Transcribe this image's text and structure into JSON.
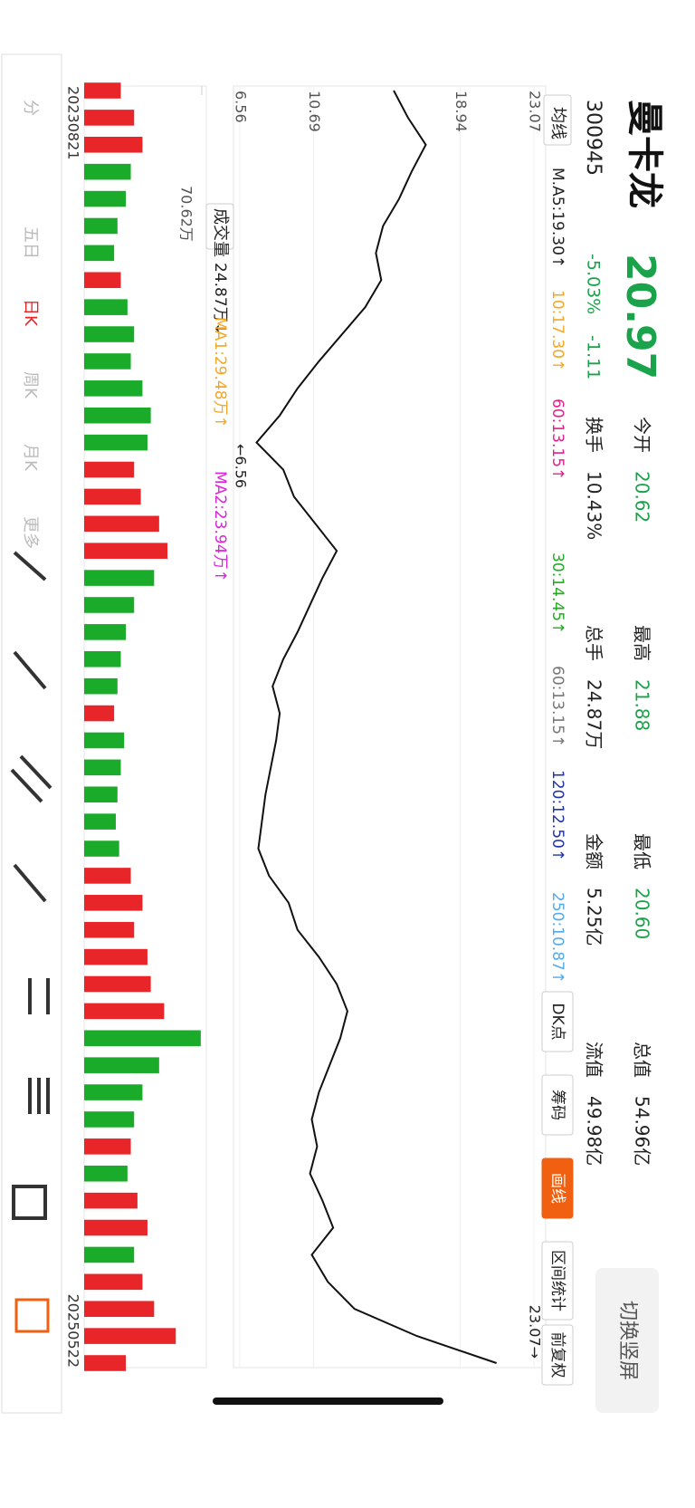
{
  "header": {
    "name": "曼卡龙",
    "code": "300945",
    "price": "20.97",
    "change_pct": "-5.03%",
    "change": "-1.11",
    "stats": [
      {
        "label": "今开",
        "value": "20.62",
        "color": "#1aa34a"
      },
      {
        "label": "换手",
        "value": "10.43%",
        "color": "#222222"
      },
      {
        "label": "最高",
        "value": "21.88",
        "color": "#1aa34a"
      },
      {
        "label": "总手",
        "value": "24.87万",
        "color": "#222222"
      },
      {
        "label": "最低",
        "value": "20.60",
        "color": "#1aa34a"
      },
      {
        "label": "金额",
        "value": "5.25亿",
        "color": "#222222"
      },
      {
        "label": "总值",
        "value": "54.96亿",
        "color": "#222222"
      },
      {
        "label": "流值",
        "value": "49.98亿",
        "color": "#222222"
      }
    ]
  },
  "switch_button": "切换竖屏",
  "ma_selector": "均线",
  "ma_items": [
    {
      "text": "M.A5:19.30↑",
      "color": "#222222"
    },
    {
      "text": "10:17.30↑",
      "color": "#f5a623"
    },
    {
      "text": "60:13.15↑",
      "color": "#e0218a"
    },
    {
      "text": "30:14.45↑",
      "color": "#22aa22"
    },
    {
      "text": "60:13.15↑",
      "color": "#777777"
    },
    {
      "text": "120:12.50↑",
      "color": "#2233aa"
    },
    {
      "text": "250:10.87↑",
      "color": "#55aaee"
    }
  ],
  "side_buttons": [
    "DK点",
    "筹码",
    "画线",
    "区间统计",
    "前复权"
  ],
  "chart_data": [
    {
      "type": "line",
      "color": "#111111",
      "categories": [
        "20230821",
        null,
        null,
        null,
        null,
        null,
        null,
        null,
        null,
        null,
        null,
        null,
        null,
        null,
        null,
        null,
        null,
        null,
        null,
        null,
        null,
        null,
        null,
        null,
        null,
        null,
        null,
        null,
        null,
        null,
        null,
        null,
        null,
        null,
        null,
        null,
        null,
        null,
        null,
        null,
        null,
        null,
        null,
        null,
        null,
        null,
        null,
        "20250522"
      ],
      "values": [
        15.2,
        16.0,
        17.0,
        16.2,
        15.5,
        14.6,
        14.2,
        14.5,
        13.6,
        12.3,
        11.0,
        9.8,
        8.8,
        7.5,
        9.0,
        9.6,
        10.8,
        12.0,
        11.2,
        10.5,
        9.8,
        9.0,
        8.4,
        8.8,
        8.6,
        8.3,
        8.0,
        7.8,
        7.6,
        8.2,
        9.3,
        9.8,
        11.0,
        12.0,
        12.6,
        12.2,
        11.6,
        11.0,
        10.6,
        10.9,
        10.5,
        11.2,
        11.8,
        10.6,
        11.5,
        13.0,
        16.5,
        20.97
      ],
      "ylim": [
        6.56,
        23.07
      ],
      "yticks": [
        23.07,
        18.94,
        10.69,
        6.56
      ],
      "annotations": [
        "23.07→",
        "←6.56"
      ]
    },
    {
      "type": "bar",
      "title": "成交量",
      "up_color": "#e8262a",
      "down_color": "#1aab2a",
      "values": [
        22,
        30,
        35,
        28,
        25,
        20,
        18,
        22,
        26,
        30,
        28,
        35,
        40,
        38,
        30,
        34,
        45,
        50,
        42,
        30,
        25,
        22,
        20,
        18,
        24,
        22,
        20,
        19,
        21,
        28,
        35,
        30,
        38,
        40,
        48,
        70,
        45,
        35,
        30,
        28,
        26,
        32,
        38,
        30,
        35,
        42,
        55,
        25
      ],
      "ylim": [
        0,
        70.62
      ],
      "yticks": [
        {
          "value": 70.62,
          "label": "70.62万"
        }
      ],
      "legend": [
        {
          "text": "24.87万↓",
          "color": "#222222"
        },
        {
          "text": "MA1:29.48万↑",
          "color": "#f5a623"
        },
        {
          "text": "MA2:23.94万↑",
          "color": "#dd22dd"
        }
      ]
    }
  ],
  "toolbar": [
    "分",
    "五日",
    "日K",
    "周K",
    "月K",
    "更多"
  ]
}
